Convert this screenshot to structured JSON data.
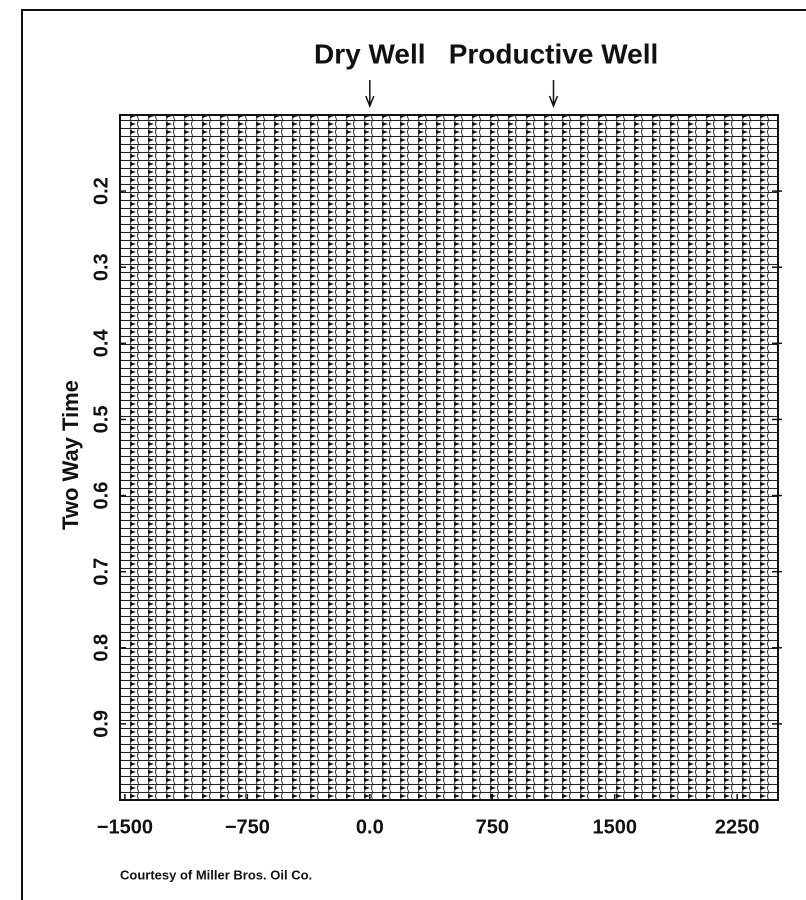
{
  "chart_data": {
    "type": "seismic",
    "annotations": [
      {
        "text": "Dry Well",
        "x": 0
      },
      {
        "text": "Productive Well",
        "x": 1125
      }
    ],
    "ylabel": "Two Way Time",
    "xlim": [
      -1530,
      2500
    ],
    "xticks": [
      {
        "value": -1500,
        "label": "−1500"
      },
      {
        "value": -750,
        "label": "−750"
      },
      {
        "value": 0,
        "label": "0.0"
      },
      750,
      1500,
      2250
    ],
    "ylim": [
      0.1,
      1.0
    ],
    "y_inverted": true,
    "yticks": [
      0.2,
      0.3,
      0.4,
      0.5,
      0.6,
      0.7,
      0.8,
      0.9
    ],
    "footer": "Courtesy of Miller Bros. Oil Co."
  }
}
